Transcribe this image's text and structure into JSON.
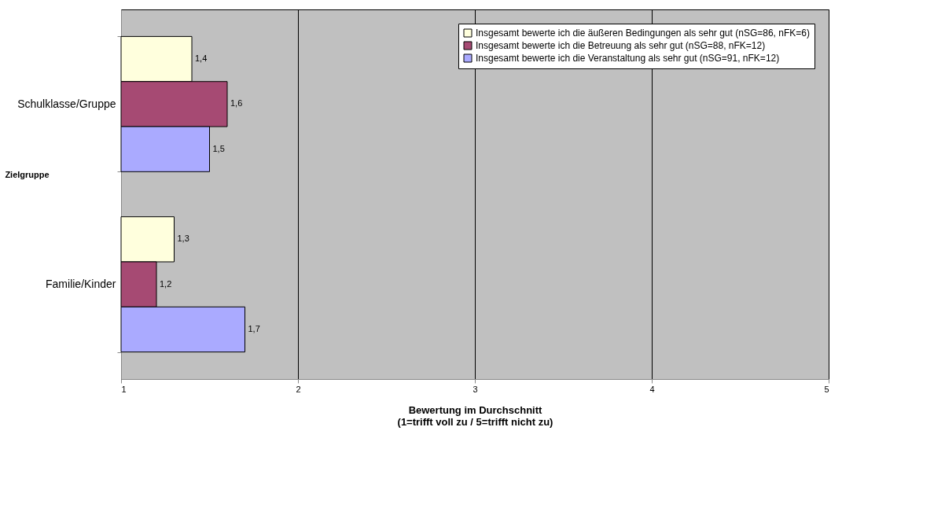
{
  "chart_data": {
    "type": "bar",
    "orientation": "horizontal",
    "xlabel": "Bewertung im Durchschnitt\n(1=trifft voll zu / 5=trifft nicht zu)",
    "ylabel": "Zielgruppe",
    "categories": [
      "Schulklasse/Gruppe",
      "Familie/Kinder"
    ],
    "series": [
      {
        "name": "Insgesamt bewerte ich die äußeren Bedingungen als sehr gut (nSG=86, nFK=6)",
        "color": "#ffffdd",
        "values": [
          1.4,
          1.3
        ],
        "value_labels": [
          "1,4",
          "1,3"
        ]
      },
      {
        "name": "Insgesamt bewerte ich die Betreuung als sehr gut (nSG=88, nFK=12)",
        "color": "#a64a73",
        "values": [
          1.6,
          1.2
        ],
        "value_labels": [
          "1,6",
          "1,2"
        ]
      },
      {
        "name": "Insgesamt bewerte ich die Veranstaltung als sehr gut (nSG=91, nFK=12)",
        "color": "#aaaaff",
        "values": [
          1.5,
          1.7
        ],
        "value_labels": [
          "1,5",
          "1,7"
        ]
      }
    ],
    "xlim": [
      1,
      5
    ],
    "xticks": [
      1,
      2,
      3,
      4,
      5
    ],
    "grid": "x",
    "legend": "top right"
  }
}
